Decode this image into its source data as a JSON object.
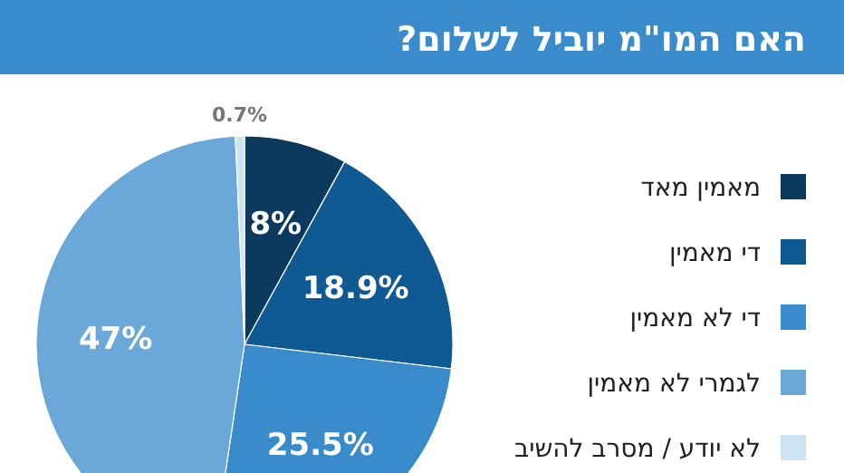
{
  "chart_data": {
    "type": "pie",
    "title": "האם המו\"מ יוביל לשלום?",
    "categories": [
      "מאמין מאד",
      "די מאמין",
      "די לא מאמין",
      "לגמרי לא מאמין",
      "לא יודע / מסרב להשיב"
    ],
    "values": [
      8,
      18.9,
      25.5,
      47,
      0.7
    ],
    "colors": [
      "#0b3a5e",
      "#0f5a92",
      "#3a8bcb",
      "#69a8d8",
      "#cfe4f3"
    ],
    "value_labels": [
      "8%",
      "18.9%",
      "25.5%",
      "47%",
      "0.7%"
    ],
    "legend": "right"
  }
}
